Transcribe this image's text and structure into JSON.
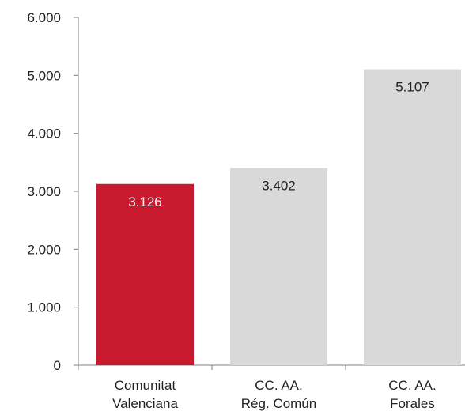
{
  "chart_data": {
    "type": "bar",
    "categories": [
      [
        "Comunitat",
        "Valenciana"
      ],
      [
        "CC. AA.",
        "Rég. Común"
      ],
      [
        "CC. AA.",
        "Forales"
      ]
    ],
    "values": [
      3126,
      3402,
      5107
    ],
    "value_labels": [
      "3.126",
      "3.402",
      "5.107"
    ],
    "ylim": [
      0,
      6000
    ],
    "yticks": [
      0,
      1000,
      2000,
      3000,
      4000,
      5000,
      6000
    ],
    "ytick_labels": [
      "0",
      "1.000",
      "2.000",
      "3.000",
      "4.000",
      "5.000",
      "6.000"
    ],
    "title": "",
    "xlabel": "",
    "ylabel": "",
    "grid": false,
    "bar_colors": [
      "#c8192e",
      "#d9d9d9",
      "#d9d9d9"
    ],
    "label_colors": [
      "#ffffff",
      "#222222",
      "#222222"
    ],
    "axis_color": "#808080"
  }
}
